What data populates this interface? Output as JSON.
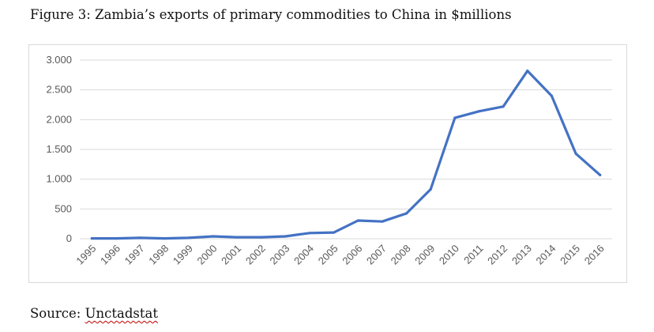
{
  "figure": {
    "title": "Figure 3: Zambia’s exports of primary commodities to China in $millions",
    "source_label": "Source:",
    "source_name": "Unctadstat"
  },
  "colors": {
    "line": "#4472C4",
    "grid": "#d9d9d9",
    "axis_text": "#595959"
  },
  "chart_data": {
    "type": "line",
    "title": "",
    "xlabel": "",
    "ylabel": "",
    "categories": [
      "1995",
      "1996",
      "1997",
      "1998",
      "1999",
      "2000",
      "2001",
      "2002",
      "2003",
      "2004",
      "2005",
      "2006",
      "2007",
      "2008",
      "2009",
      "2010",
      "2011",
      "2012",
      "2013",
      "2014",
      "2015",
      "2016"
    ],
    "series": [
      {
        "values": [
          5,
          5,
          15,
          5,
          15,
          40,
          25,
          25,
          40,
          95,
          105,
          305,
          290,
          425,
          830,
          2030,
          2140,
          2220,
          2820,
          2400,
          1430,
          1070
        ]
      }
    ],
    "ylim": [
      0,
      3000
    ],
    "yticks": [
      0,
      500,
      1000,
      1500,
      2000,
      2500,
      3000
    ],
    "ytick_labels": [
      "0",
      "500",
      "1.000",
      "1.500",
      "2.000",
      "2.500",
      "3.000"
    ],
    "grid": true,
    "legend": "none"
  }
}
